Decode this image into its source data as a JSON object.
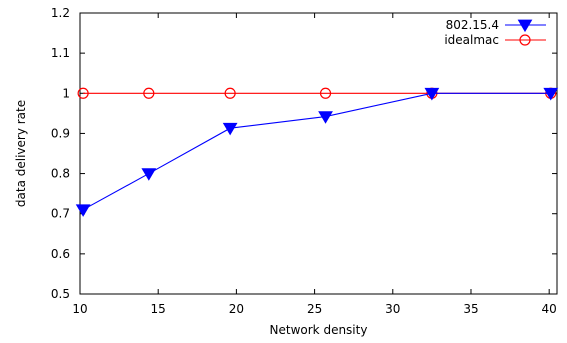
{
  "chart_data": {
    "type": "line",
    "xlabel": "Network density",
    "ylabel": "data delivery rate",
    "xlim": [
      10,
      40.5
    ],
    "ylim": [
      0.5,
      1.2
    ],
    "xticks": [
      10,
      15,
      20,
      25,
      30,
      35,
      40
    ],
    "yticks": [
      0.5,
      0.6,
      0.7,
      0.8,
      0.9,
      1,
      1.1,
      1.2
    ],
    "grid": false,
    "legend_position": "top-right",
    "series": [
      {
        "name": "802.15.4",
        "color": "#0000ff",
        "marker": "filled-down-triangle",
        "x": [
          10.2,
          14.4,
          19.6,
          25.7,
          32.5,
          40.1
        ],
        "y": [
          0.71,
          0.8,
          0.913,
          0.942,
          1.0,
          1.0
        ]
      },
      {
        "name": "idealmac",
        "color": "#ff0000",
        "marker": "open-circle",
        "x": [
          10.2,
          14.4,
          19.6,
          25.7,
          32.5,
          40.1
        ],
        "y": [
          1.0,
          1.0,
          1.0,
          1.0,
          1.0,
          1.0
        ]
      }
    ]
  }
}
